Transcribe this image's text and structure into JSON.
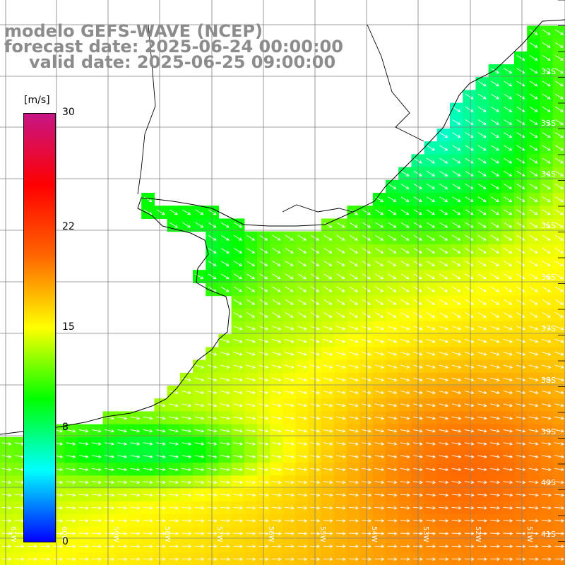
{
  "header": {
    "model": "modelo GEFS-WAVE (NCEP)",
    "forecast": "forecast date: 2025-06-24 00:00:00",
    "valid": "valid date: 2025-06-25 09:00:00"
  },
  "colorbar": {
    "unit": "[m/s]",
    "ticks": [
      "30",
      "22",
      "15",
      "8",
      "0"
    ],
    "tick_values": [
      30,
      22,
      15,
      8,
      0
    ],
    "min": 0,
    "max": 30,
    "colors": [
      "#0000ff",
      "#00ffff",
      "#00ff00",
      "#ffff00",
      "#ff6600",
      "#ff0000",
      "#c71585"
    ]
  },
  "grid": {
    "lat_labels": [
      "32S",
      "33S",
      "34S",
      "35S",
      "36S",
      "37S",
      "38S",
      "39S",
      "40S",
      "41S"
    ],
    "lon_labels": [
      "61W",
      "60W",
      "59W",
      "58W",
      "57W",
      "56W",
      "55W",
      "54W",
      "53W",
      "52W",
      "51W"
    ]
  },
  "wind_field": {
    "variable": "wind speed",
    "unit": "m/s",
    "direction_description": "mostly from west/northwest, arrows pointing east/southeast"
  },
  "colors": {
    "land": "#ffffff",
    "grid": "#808080",
    "coast": "#000000",
    "arrow": "#ffffff",
    "header_text": "#8c8c8c"
  }
}
